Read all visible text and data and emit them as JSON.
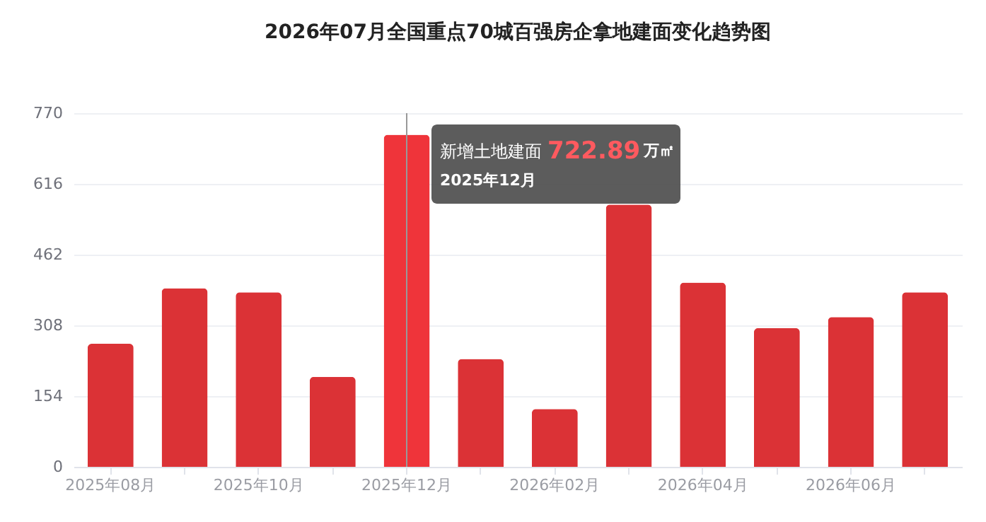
{
  "chart_data": {
    "type": "bar",
    "title": "2026年07月全国重点70城百强房企拿地建面变化趋势图",
    "categories": [
      "2025年08月",
      null,
      "2025年10月",
      null,
      "2025年12月",
      null,
      "2026年02月",
      null,
      "2026年04月",
      null,
      "2026年06月",
      null
    ],
    "values": [
      268,
      389,
      380,
      196,
      722.89,
      235,
      126,
      571,
      401,
      302,
      326,
      380
    ],
    "colors": [
      "#db3236",
      "#db3236",
      "#db3236",
      "#db3236",
      "#ef343a",
      "#db3236",
      "#db3236",
      "#db3236",
      "#db3236",
      "#db3236",
      "#db3236",
      "#db3236"
    ],
    "ylim": [
      0,
      770
    ],
    "yticks": [
      0,
      154,
      308,
      462,
      616,
      770
    ],
    "grid": "y",
    "ref_lines": [
      {
        "axis": "x",
        "value": "2025年12月",
        "color": "#999999"
      }
    ],
    "annotations": [
      "新增土地建面",
      "722.89",
      "万㎡",
      "2025年12月"
    ]
  }
}
